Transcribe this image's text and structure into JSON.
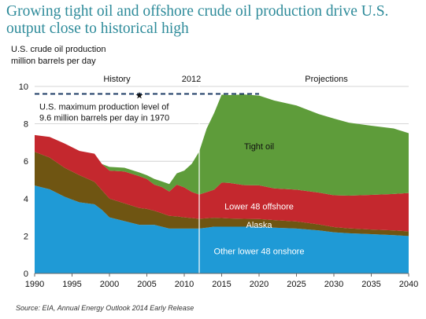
{
  "headline": "Growing tight oil and offshore crude oil production drive U.S. output close to historical high",
  "source_note": "Source: EIA, Annual Energy Outlook 2014 Early Release",
  "chart_data": {
    "type": "area",
    "stacked": true,
    "ylabel_line1": "U.S. crude oil production",
    "ylabel_line2": "million barrels per day",
    "xlim": [
      1990,
      2040
    ],
    "ylim": [
      0,
      10
    ],
    "x_ticks": [
      1990,
      1995,
      2000,
      2005,
      2010,
      2015,
      2020,
      2025,
      2030,
      2035,
      2040
    ],
    "y_ticks": [
      0,
      2,
      4,
      6,
      8,
      10
    ],
    "grid": true,
    "period_labels": {
      "history": "History",
      "divider_year": "2012",
      "projections": "Projections"
    },
    "divider_year": 2012,
    "reference": {
      "value": 9.6,
      "x_range": [
        1990,
        2020
      ],
      "marker_x": 2004,
      "annotation_line1": "U.S. maximum production level of",
      "annotation_line2": "9.6 million barrels per day in 1970"
    },
    "x": [
      1990,
      1992,
      1994,
      1996,
      1998,
      1999,
      2000,
      2002,
      2004,
      2005,
      2006,
      2007,
      2008,
      2009,
      2010,
      2011,
      2012,
      2013,
      2014,
      2015,
      2016,
      2018,
      2020,
      2022,
      2025,
      2028,
      2030,
      2032,
      2035,
      2038,
      2040
    ],
    "series": [
      {
        "name": "Other lower 48 onshore",
        "color": "#1f9ad6",
        "values": [
          4.7,
          4.5,
          4.1,
          3.8,
          3.7,
          3.4,
          3.0,
          2.8,
          2.6,
          2.6,
          2.6,
          2.5,
          2.4,
          2.4,
          2.4,
          2.4,
          2.4,
          2.45,
          2.5,
          2.5,
          2.5,
          2.5,
          2.5,
          2.45,
          2.4,
          2.3,
          2.2,
          2.15,
          2.1,
          2.05,
          2.0
        ]
      },
      {
        "name": "Alaska",
        "color": "#6f5512",
        "values": [
          1.8,
          1.7,
          1.55,
          1.45,
          1.2,
          1.05,
          1.0,
          0.95,
          0.9,
          0.85,
          0.75,
          0.72,
          0.68,
          0.65,
          0.6,
          0.56,
          0.52,
          0.5,
          0.48,
          0.46,
          0.44,
          0.42,
          0.41,
          0.4,
          0.38,
          0.32,
          0.28,
          0.26,
          0.25,
          0.25,
          0.25
        ]
      },
      {
        "name": "Lower 48 offshore",
        "color": "#c4282e",
        "values": [
          0.9,
          1.1,
          1.3,
          1.3,
          1.5,
          1.4,
          1.5,
          1.7,
          1.7,
          1.6,
          1.4,
          1.4,
          1.3,
          1.7,
          1.6,
          1.4,
          1.3,
          1.4,
          1.5,
          1.9,
          1.9,
          1.8,
          1.8,
          1.7,
          1.7,
          1.7,
          1.7,
          1.75,
          1.85,
          1.95,
          2.05
        ]
      },
      {
        "name": "Tight oil",
        "color": "#5e9c3a",
        "values": [
          0,
          0,
          0,
          0,
          0,
          0,
          0.2,
          0.2,
          0.2,
          0.2,
          0.3,
          0.3,
          0.4,
          0.6,
          0.9,
          1.5,
          2.3,
          3.4,
          4.1,
          4.7,
          4.7,
          4.85,
          4.8,
          4.7,
          4.5,
          4.2,
          4.1,
          3.9,
          3.7,
          3.5,
          3.2
        ]
      }
    ],
    "series_labels": [
      {
        "text": "Tight oil",
        "x": 2020,
        "y": 6.8,
        "color": "#111111"
      },
      {
        "text": "Lower 48 offshore",
        "x": 2020,
        "y": 3.6,
        "color": "#ffffff"
      },
      {
        "text": "Alaska",
        "x": 2020,
        "y": 2.6,
        "color": "#ffffff"
      },
      {
        "text": "Other lower 48 onshore",
        "x": 2020,
        "y": 1.2,
        "color": "#ffffff"
      }
    ]
  }
}
